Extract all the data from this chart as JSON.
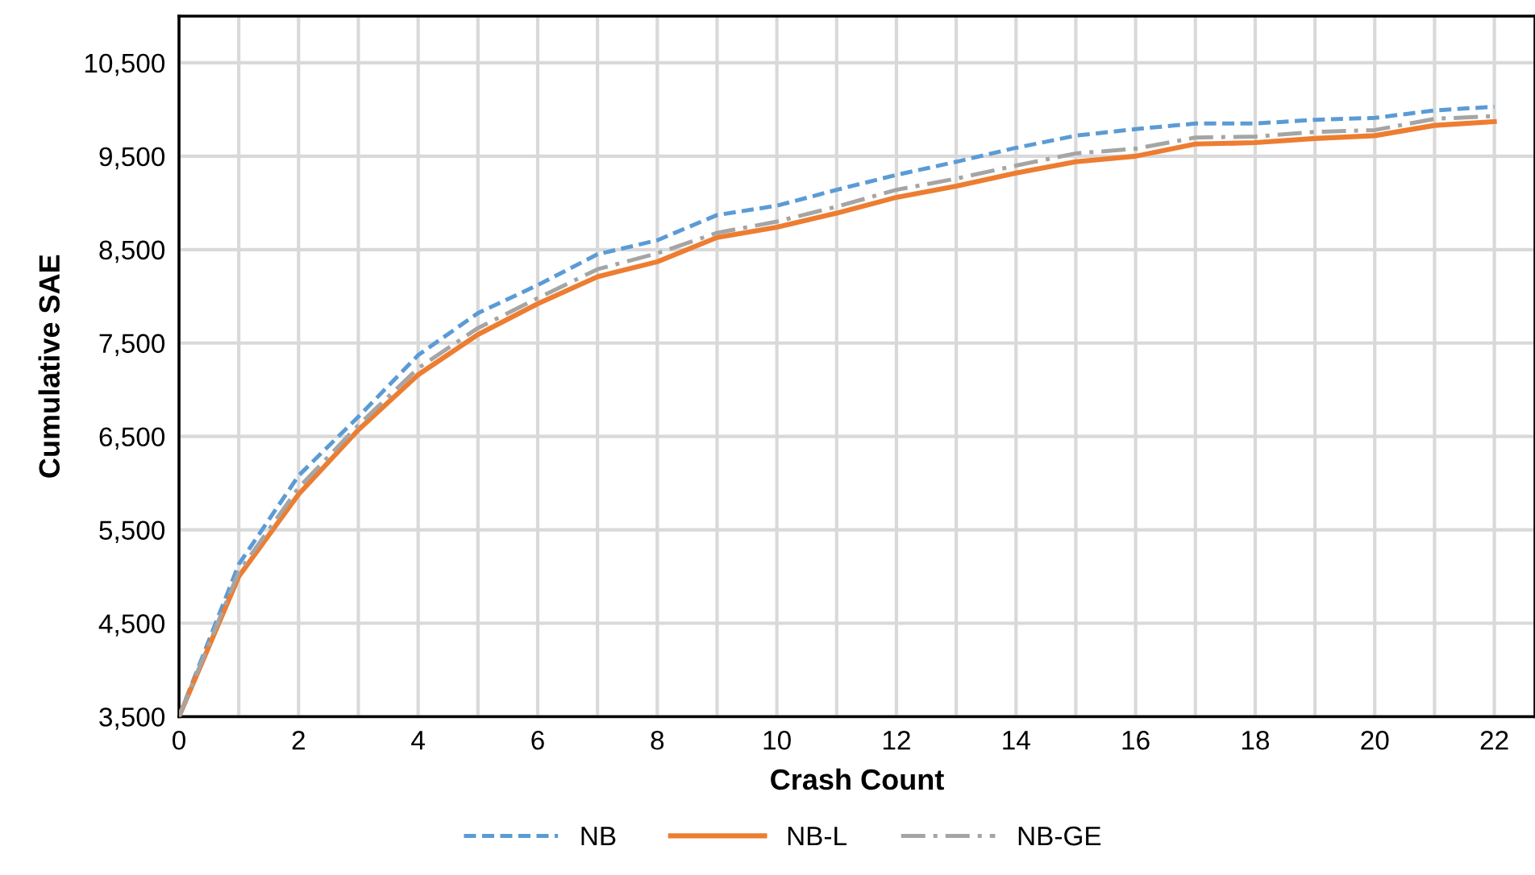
{
  "chart_data": {
    "type": "line",
    "xlabel": "Crash Count",
    "ylabel": "Cumulative SAE",
    "x": [
      0,
      1,
      2,
      3,
      4,
      5,
      6,
      7,
      8,
      9,
      10,
      11,
      12,
      13,
      14,
      15,
      16,
      17,
      18,
      19,
      20,
      21,
      22
    ],
    "series": [
      {
        "name": "NB",
        "color": "#5b9bd5",
        "line_style": "dashed",
        "values": [
          3500,
          5130,
          6080,
          6710,
          7370,
          7820,
          8120,
          8450,
          8600,
          8870,
          8970,
          9140,
          9300,
          9440,
          9590,
          9720,
          9790,
          9850,
          9850,
          9890,
          9910,
          9990,
          10030
        ]
      },
      {
        "name": "NB-L",
        "color": "#ed7d31",
        "line_style": "solid",
        "values": [
          3500,
          5000,
          5880,
          6570,
          7160,
          7590,
          7920,
          8210,
          8370,
          8630,
          8740,
          8890,
          9060,
          9180,
          9320,
          9440,
          9500,
          9630,
          9645,
          9690,
          9720,
          9830,
          9870
        ]
      },
      {
        "name": "NB-GE",
        "color": "#a5a5a5",
        "line_style": "dashdot",
        "values": [
          3500,
          5050,
          5950,
          6620,
          7230,
          7660,
          7980,
          8290,
          8460,
          8680,
          8800,
          8960,
          9140,
          9260,
          9400,
          9530,
          9580,
          9700,
          9710,
          9760,
          9780,
          9900,
          9930
        ]
      }
    ],
    "xlim": [
      0,
      22.68
    ],
    "xticks": [
      0,
      {
        "value": 1,
        "label": null
      },
      2,
      {
        "value": 3,
        "label": null
      },
      4,
      {
        "value": 5,
        "label": null
      },
      6,
      {
        "value": 7,
        "label": null
      },
      8,
      {
        "value": 9,
        "label": null
      },
      10,
      {
        "value": 11,
        "label": null
      },
      12,
      {
        "value": 13,
        "label": null
      },
      14,
      {
        "value": 15,
        "label": null
      },
      16,
      {
        "value": 17,
        "label": null
      },
      18,
      {
        "value": 19,
        "label": null
      },
      20,
      {
        "value": 21,
        "label": null
      },
      22
    ],
    "ylim": [
      3500,
      11000
    ],
    "yticks": [
      {
        "value": 3500,
        "label": "3,500"
      },
      {
        "value": 4500,
        "label": "4,500"
      },
      {
        "value": 5500,
        "label": "5,500"
      },
      {
        "value": 6500,
        "label": "6,500"
      },
      {
        "value": 7500,
        "label": "7,500"
      },
      {
        "value": 8500,
        "label": "8,500"
      },
      {
        "value": 9500,
        "label": "9,500"
      },
      {
        "value": 10500,
        "label": "10,500"
      }
    ],
    "grid": true,
    "legend": "bottom"
  }
}
